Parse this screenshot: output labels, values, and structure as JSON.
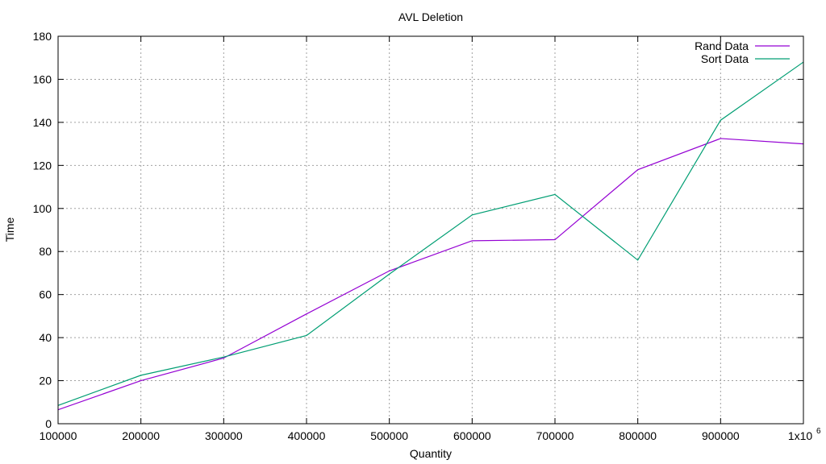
{
  "chart_data": {
    "type": "line",
    "title": "AVL Deletion",
    "xlabel": "Quantity",
    "ylabel": "Time",
    "x": [
      100000,
      200000,
      300000,
      400000,
      500000,
      600000,
      700000,
      800000,
      900000,
      1000000
    ],
    "xlim": [
      100000,
      1000000
    ],
    "ylim": [
      0,
      180
    ],
    "x_ticks": [
      "100000",
      "200000",
      "300000",
      "400000",
      "500000",
      "600000",
      "700000",
      "800000",
      "900000",
      "1x10"
    ],
    "x_last_tick_superscript": "6",
    "y_ticks": [
      "0",
      "20",
      "40",
      "60",
      "80",
      "100",
      "120",
      "140",
      "160",
      "180"
    ],
    "grid": true,
    "legend_position": "top-right",
    "series": [
      {
        "name": "Rand Data",
        "color": "#9400d3",
        "values": [
          6.5,
          20,
          30.5,
          51,
          71,
          85,
          85.5,
          118,
          132.5,
          130
        ]
      },
      {
        "name": "Sort Data",
        "color": "#009e73",
        "values": [
          8.5,
          22.5,
          31,
          41,
          69.5,
          97,
          106.5,
          76,
          141,
          168
        ]
      }
    ]
  }
}
